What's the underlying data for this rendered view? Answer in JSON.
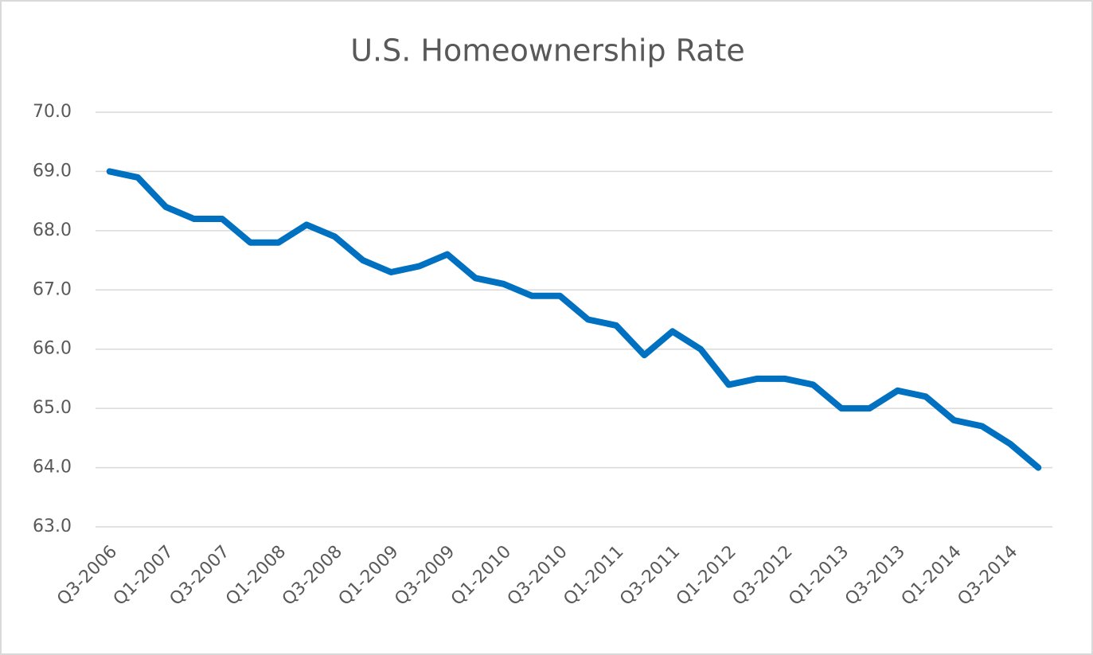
{
  "chart_data": {
    "type": "line",
    "title": "U.S. Homeownership Rate",
    "categories": [
      "Q3-2006",
      null,
      "Q1-2007",
      null,
      "Q3-2007",
      null,
      "Q1-2008",
      null,
      "Q3-2008",
      null,
      "Q1-2009",
      null,
      "Q3-2009",
      null,
      "Q1-2010",
      null,
      "Q3-2010",
      null,
      "Q1-2011",
      null,
      "Q3-2011",
      null,
      "Q1-2012",
      null,
      "Q3-2012",
      null,
      "Q1-2013",
      null,
      "Q3-2013",
      null,
      "Q1-2014",
      null,
      "Q3-2014",
      null
    ],
    "series": [
      {
        "name": "Homeownership Rate",
        "color": "#0070c0",
        "values": [
          69.0,
          68.9,
          68.4,
          68.2,
          68.2,
          67.8,
          67.8,
          68.1,
          67.9,
          67.5,
          67.3,
          67.4,
          67.6,
          67.2,
          67.1,
          66.9,
          66.9,
          66.5,
          66.4,
          65.9,
          66.3,
          66.0,
          65.4,
          65.5,
          65.5,
          65.4,
          65.0,
          65.0,
          65.3,
          65.2,
          64.8,
          64.7,
          64.4,
          64.0
        ]
      }
    ],
    "ylim": [
      63,
      70
    ],
    "yticks": [
      {
        "value": 63,
        "label": "63.0"
      },
      {
        "value": 64,
        "label": "64.0"
      },
      {
        "value": 65,
        "label": "65.0"
      },
      {
        "value": 66,
        "label": "66.0"
      },
      {
        "value": 67,
        "label": "67.0"
      },
      {
        "value": 68,
        "label": "68.0"
      },
      {
        "value": 69,
        "label": "69.0"
      },
      {
        "value": 70,
        "label": "70.0"
      }
    ],
    "grid": true
  }
}
